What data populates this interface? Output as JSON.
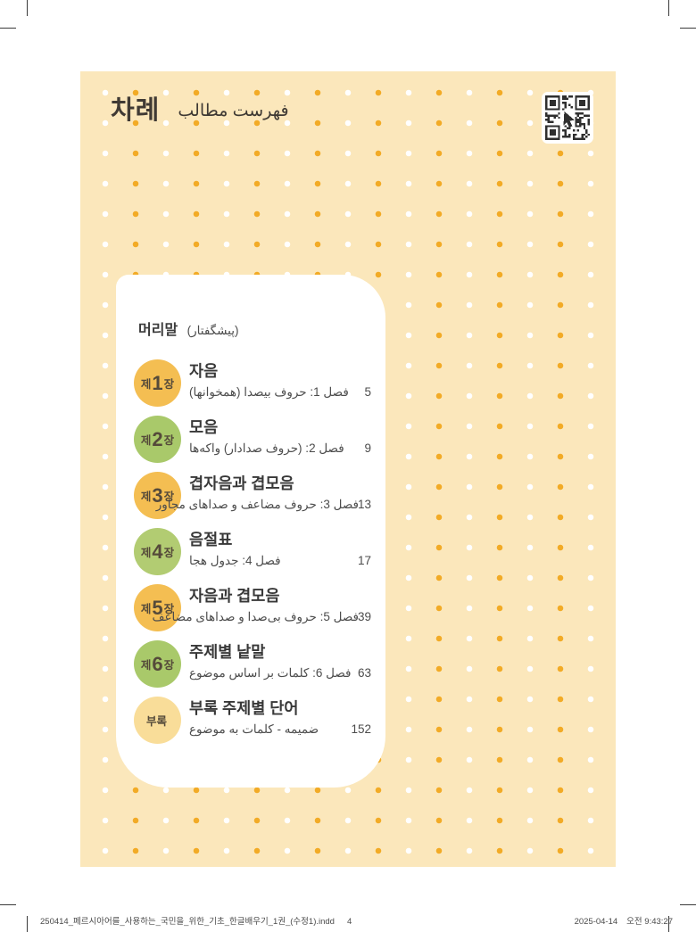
{
  "header": {
    "korean_title": "차례",
    "persian_title": "فهرست مطالب"
  },
  "qr": {
    "icon": "qr-code",
    "center_icon": "cursor-check-icon",
    "dark_color": "#2f2f2f"
  },
  "preface": {
    "korean": "머리말",
    "persian": "(پیشگفتار)"
  },
  "chapters": [
    {
      "badge_prefix": "제",
      "badge_num": "1",
      "badge_suffix": "장",
      "badge_color": "#f4be52",
      "title": "자음",
      "subtitle": "فصل 1: حروف بیصدا (همخوانها)",
      "page": "5"
    },
    {
      "badge_prefix": "제",
      "badge_num": "2",
      "badge_suffix": "장",
      "badge_color": "#a9c96a",
      "title": "모음",
      "subtitle": "فصل 2: (حروف صدادار) واکه‌ها",
      "page": "9"
    },
    {
      "badge_prefix": "제",
      "badge_num": "3",
      "badge_suffix": "장",
      "badge_color": "#f4be52",
      "title": "겹자음과 겹모음",
      "subtitle": "فصل 3: حروف مضاعف و صداهای مجاور",
      "page": "13"
    },
    {
      "badge_prefix": "제",
      "badge_num": "4",
      "badge_suffix": "장",
      "badge_color": "#b2cc72",
      "title": "음절표",
      "subtitle": "فصل 4: جدول هجا",
      "page": "17"
    },
    {
      "badge_prefix": "제",
      "badge_num": "5",
      "badge_suffix": "장",
      "badge_color": "#f4be52",
      "title": "자음과 겹모음",
      "subtitle": "فصل 5: حروف بی‌صدا و صداهای مضاعف",
      "page": "39"
    },
    {
      "badge_prefix": "제",
      "badge_num": "6",
      "badge_suffix": "장",
      "badge_color": "#a9c96a",
      "title": "주제별 낱말",
      "subtitle": "فصل 6: کلمات بر اساس موضوع",
      "page": "63"
    },
    {
      "badge_prefix": "부록",
      "badge_num": "",
      "badge_suffix": "",
      "badge_color": "#f9dd99",
      "title": "부록 주제별 단어",
      "subtitle": "ضمیمه - کلمات به موضوع",
      "page": "152"
    }
  ],
  "footer": {
    "file_name": "250414_페르시아어를_사용하는_국민을_위한_기초_한글배우기_1권_(수정1).indd",
    "sheet_number": "4",
    "date": "2025-04-14",
    "time": "오전 9:43:27"
  },
  "colors": {
    "page_background": "#fbe7bb",
    "dot_orange": "#f2ab26",
    "dot_white": "#ffffff",
    "card_background": "#ffffff"
  }
}
